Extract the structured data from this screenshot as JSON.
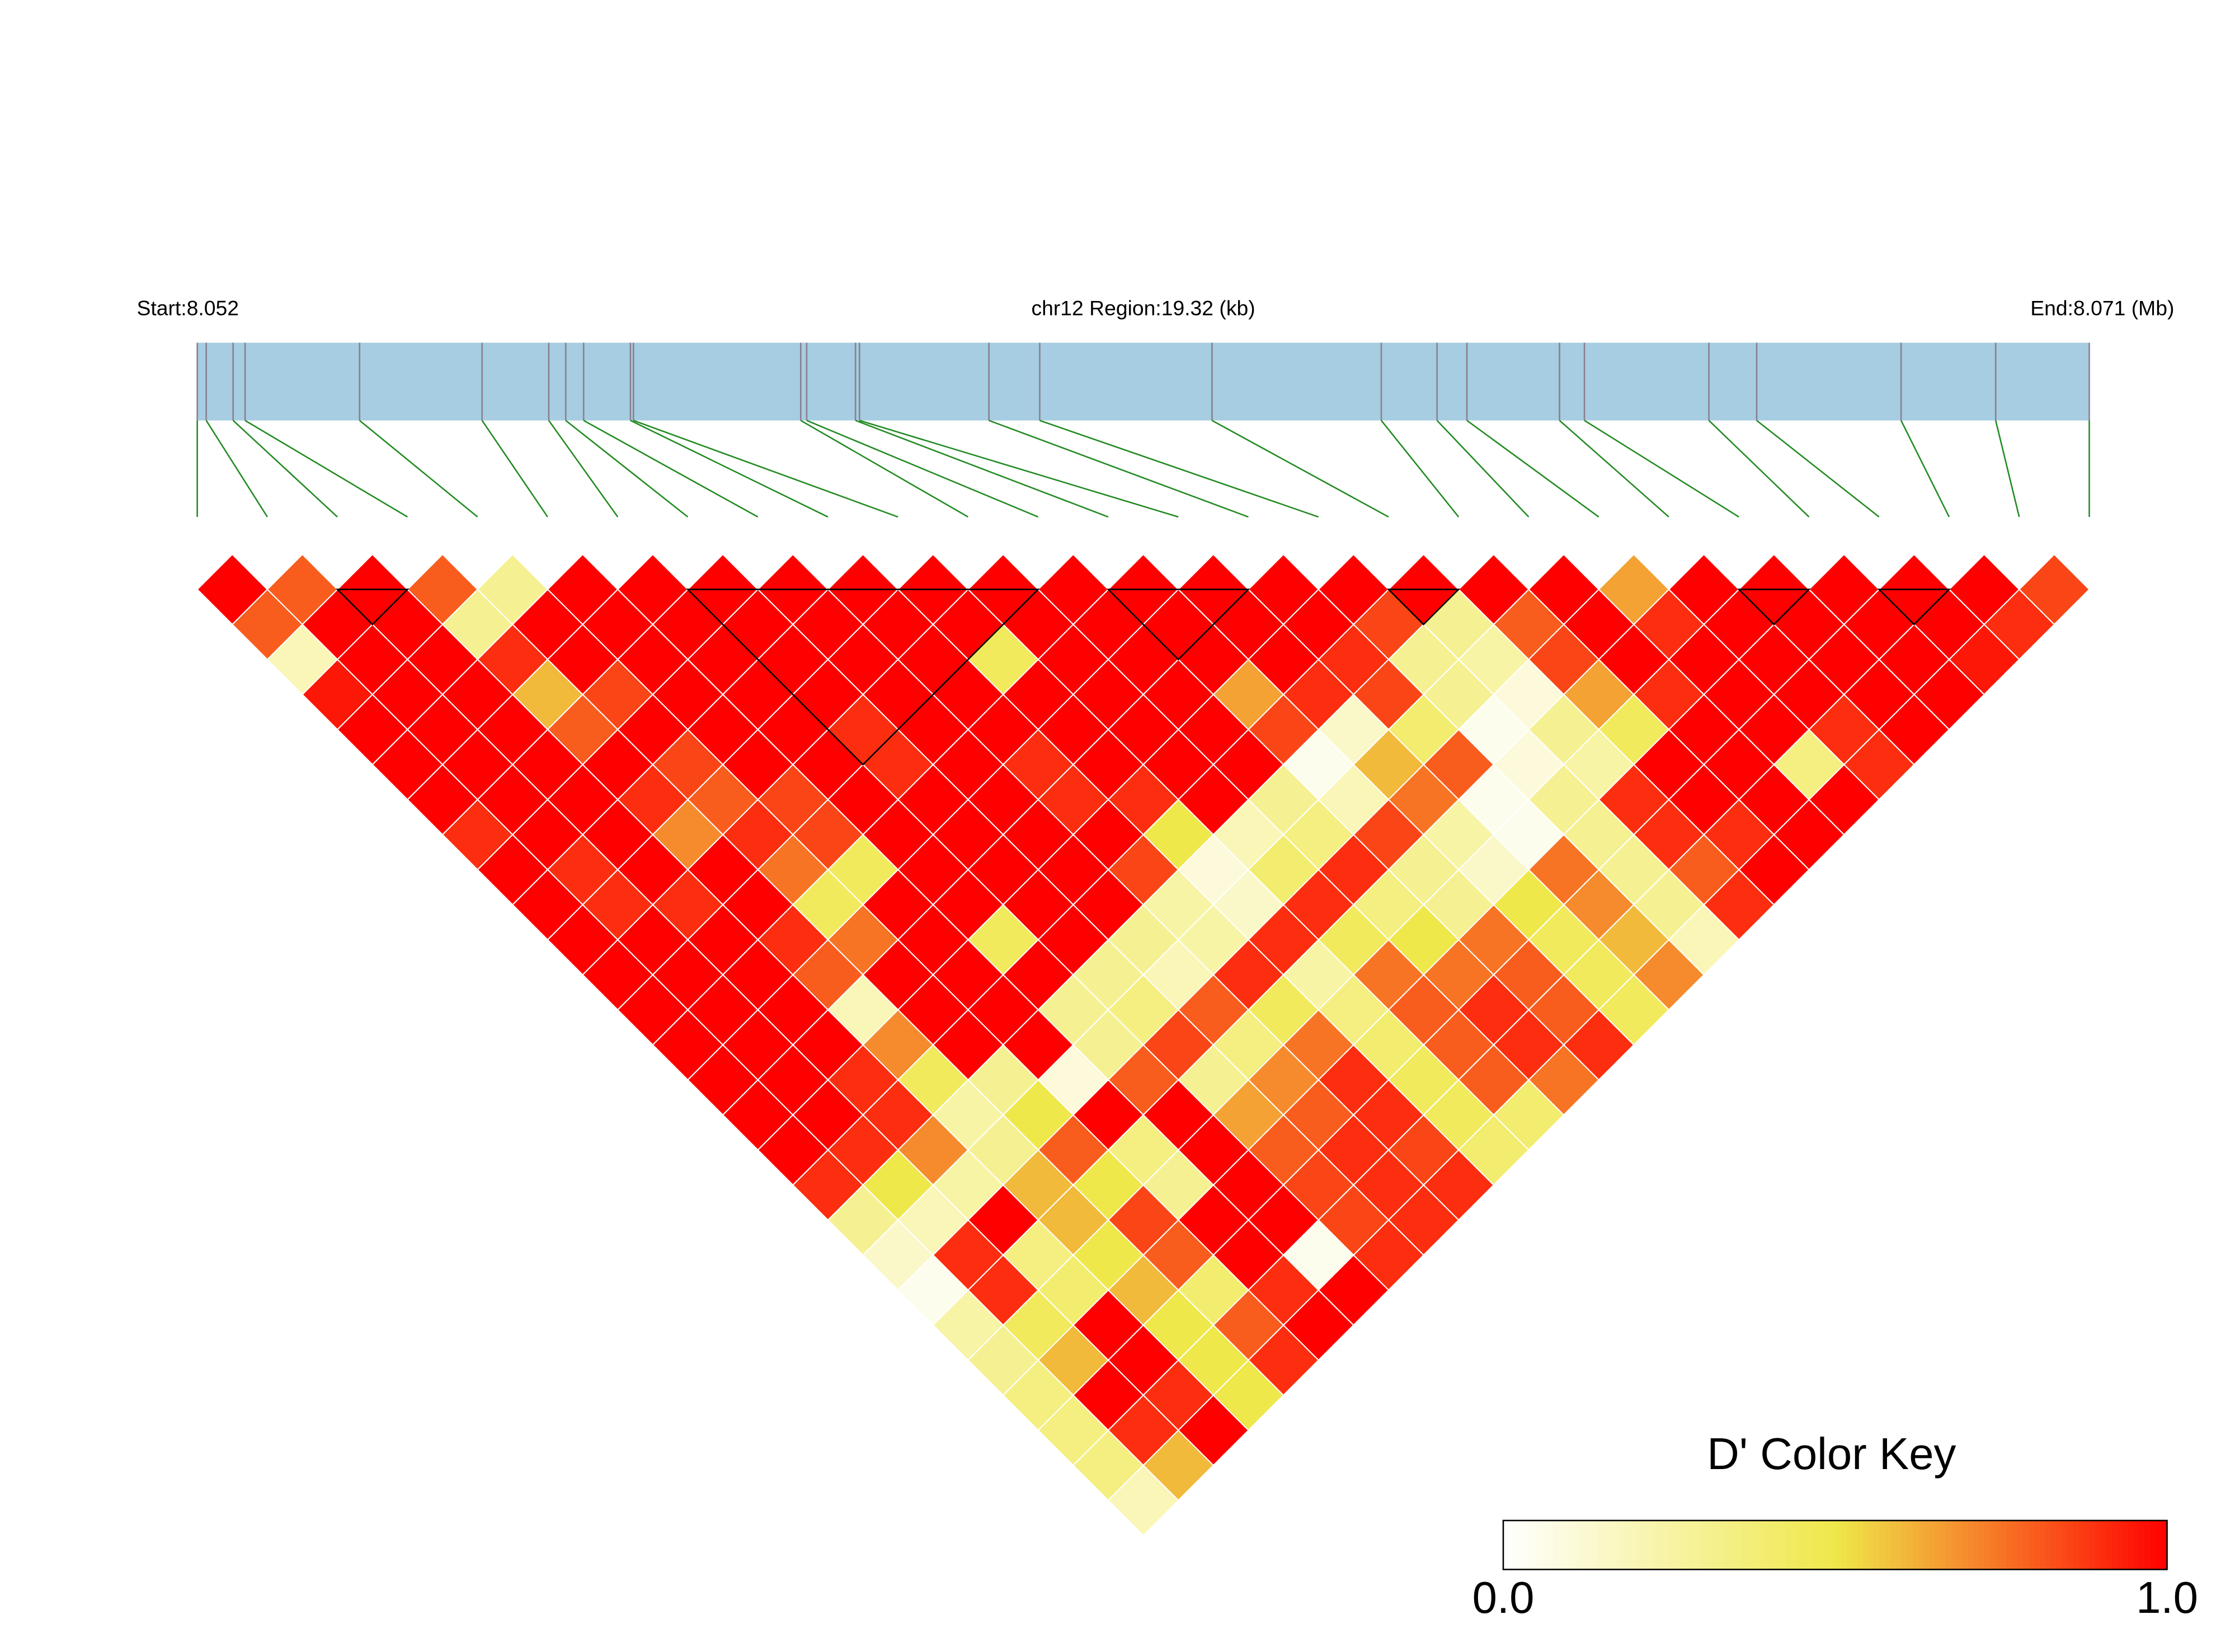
{
  "chart_data": {
    "type": "ld_heatmap",
    "start_label": "Start:8.052",
    "region_label": "chr12 Region:19.32 (kb)",
    "end_label": "End:8.071 (Mb)",
    "xlim": [
      8.052,
      8.071
    ],
    "snp_positions": [
      8.052,
      8.05209,
      8.05236,
      8.05248,
      8.05363,
      8.05486,
      8.05553,
      8.0557,
      8.05588,
      8.05635,
      8.05638,
      8.05806,
      8.05812,
      8.05861,
      8.05865,
      8.05995,
      8.06046,
      8.06219,
      8.06389,
      8.06445,
      8.06475,
      8.06568,
      8.06593,
      8.06718,
      8.06766,
      8.06911,
      8.07006,
      8.071
    ],
    "gene_bar_color": "#a6cde1",
    "snp_line_color": "#8a7f8f",
    "connector_color": "#228b22",
    "dprime": [
      [
        1,
        0.8,
        1,
        0.8,
        0.3,
        1,
        1,
        1,
        1,
        1,
        1,
        1,
        1,
        1,
        1,
        1,
        1,
        1,
        1,
        1,
        0.65,
        1,
        1,
        1,
        1,
        1,
        0.85
      ],
      [
        0.8,
        1,
        1,
        0.3,
        1,
        1,
        1,
        1,
        1,
        1,
        1,
        1,
        1,
        1,
        1,
        1,
        0.85,
        0.3,
        0.8,
        1,
        0.9,
        1,
        1,
        1,
        1,
        0.9
      ],
      [
        0.2,
        1,
        1,
        0.9,
        1,
        1,
        1,
        1,
        1,
        1,
        0.45,
        1,
        1,
        1,
        1,
        0.9,
        0.3,
        0.25,
        0.85,
        1,
        1,
        1,
        1,
        1,
        0.95
      ],
      [
        0.95,
        1,
        1,
        0.6,
        0.85,
        1,
        1,
        1,
        1,
        1,
        1,
        1,
        1,
        0.65,
        0.9,
        0.85,
        0.3,
        0.1,
        0.65,
        0.9,
        1,
        1,
        1,
        1
      ],
      [
        1,
        1,
        1,
        0.8,
        1,
        1,
        1,
        0.9,
        1,
        1,
        1,
        1,
        1,
        0.85,
        0.15,
        0.4,
        0.05,
        0.3,
        0.45,
        1,
        1,
        0.9,
        1
      ],
      [
        1,
        1,
        1,
        1,
        0.85,
        1,
        1,
        0.9,
        1,
        0.9,
        1,
        1,
        1,
        0.05,
        0.6,
        0.8,
        0.1,
        0.25,
        1,
        1,
        0.35,
        0.9
      ],
      [
        1,
        1,
        1,
        0.9,
        0.8,
        0.85,
        1,
        1,
        1,
        0.9,
        0.9,
        1,
        0.3,
        0.2,
        0.75,
        0.05,
        0.3,
        0.9,
        1,
        1,
        1
      ],
      [
        0.9,
        1,
        1,
        0.7,
        0.9,
        0.85,
        1,
        1,
        1,
        1,
        0.5,
        0.2,
        0.35,
        0.85,
        0.25,
        0.05,
        0.3,
        0.9,
        0.9,
        1
      ],
      [
        1,
        0.9,
        1,
        1,
        0.75,
        0.45,
        1,
        1,
        1,
        0.85,
        0.1,
        0.4,
        0.9,
        0.3,
        0.15,
        0.75,
        0.3,
        0.8,
        1
      ],
      [
        1,
        0.9,
        0.9,
        1,
        0.45,
        1,
        1,
        1,
        1,
        0.25,
        0.15,
        0.9,
        0.35,
        0.3,
        0.5,
        0.7,
        0.3,
        0.9
      ],
      [
        1,
        1,
        1,
        0.9,
        0.75,
        1,
        0.45,
        1,
        0.3,
        0.25,
        0.9,
        0.45,
        0.5,
        0.75,
        0.45,
        0.6,
        0.2
      ],
      [
        1,
        1,
        1,
        0.8,
        1,
        1,
        1,
        0.3,
        0.2,
        0.9,
        0.25,
        0.75,
        0.75,
        0.8,
        0.45,
        0.7
      ],
      [
        1,
        1,
        1,
        0.2,
        1,
        1,
        0.3,
        0.35,
        0.8,
        0.45,
        0.35,
        0.8,
        0.9,
        0.8,
        0.45
      ],
      [
        1,
        1,
        1,
        0.7,
        1,
        1,
        0.3,
        0.85,
        0.35,
        0.75,
        0.4,
        0.8,
        0.9,
        0.9
      ],
      [
        1,
        1,
        0.9,
        0.45,
        0.3,
        0.1,
        0.8,
        0.3,
        0.7,
        0.9,
        0.45,
        0.8,
        0.75
      ],
      [
        1,
        1,
        0.9,
        0.25,
        0.5,
        1,
        1,
        0.65,
        0.8,
        0.9,
        0.45,
        0.4
      ],
      [
        1,
        0.9,
        0.7,
        0.3,
        0.8,
        0.35,
        1,
        0.8,
        0.9,
        0.85,
        0.4
      ],
      [
        0.9,
        0.5,
        0.25,
        0.6,
        0.5,
        0.3,
        1,
        0.85,
        0.9,
        0.9
      ],
      [
        0.3,
        0.2,
        1,
        0.6,
        0.85,
        1,
        1,
        0.85,
        0.9
      ],
      [
        0.15,
        0.9,
        0.35,
        0.5,
        0.8,
        1,
        0.05,
        0.9
      ],
      [
        0.05,
        0.9,
        0.4,
        0.6,
        0.4,
        0.9,
        1
      ],
      [
        0.25,
        0.45,
        1,
        0.5,
        0.8,
        1
      ],
      [
        0.3,
        0.6,
        1,
        0.5,
        0.9
      ],
      [
        0.35,
        1,
        0.9,
        0.5
      ],
      [
        0.35,
        0.9,
        1
      ],
      [
        0.35,
        0.6
      ],
      [
        0.2
      ]
    ],
    "blocks": [
      [
        2,
        3
      ],
      [
        7,
        12
      ],
      [
        13,
        15
      ],
      [
        17,
        18
      ],
      [
        22,
        23
      ],
      [
        24,
        25
      ]
    ],
    "color_key": {
      "title": "D' Color Key",
      "ticks": [
        {
          "value": 0,
          "label": "0.0"
        },
        {
          "value": 1,
          "label": "1.0"
        }
      ],
      "colors": [
        "#ffffff",
        "#efe84a",
        "#ff0000"
      ]
    }
  }
}
